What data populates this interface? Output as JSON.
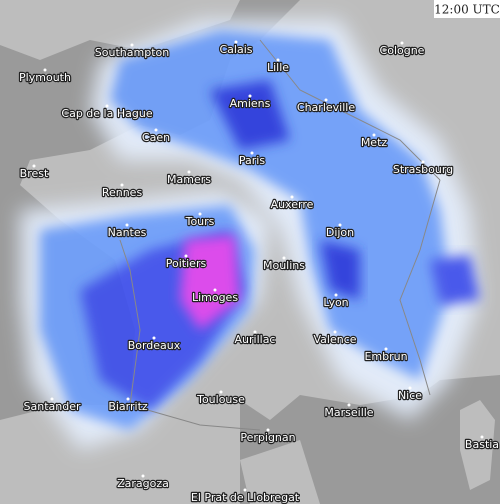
{
  "time": "12:00 UTC",
  "cities": [
    "Southampton",
    "Calais",
    "Cologne",
    "Plymouth",
    "Lille",
    "Amiens",
    "Charleville",
    "Cap de la Hague",
    "Caen",
    "Metz",
    "Paris",
    "Strasbourg",
    "Brest",
    "Mamers",
    "Rennes",
    "Auxerre",
    "Tours",
    "Nantes",
    "Dijon",
    "Poitiers",
    "Moulins",
    "Limoges",
    "Lyon",
    "Aurillac",
    "Valence",
    "Bordeaux",
    "Embrun",
    "Nice",
    "Toulouse",
    "Santander",
    "Biarritz",
    "Marseille",
    "Bastia",
    "Perpignan",
    "Zaragoza",
    "El Prat de Llobregat"
  ]
}
